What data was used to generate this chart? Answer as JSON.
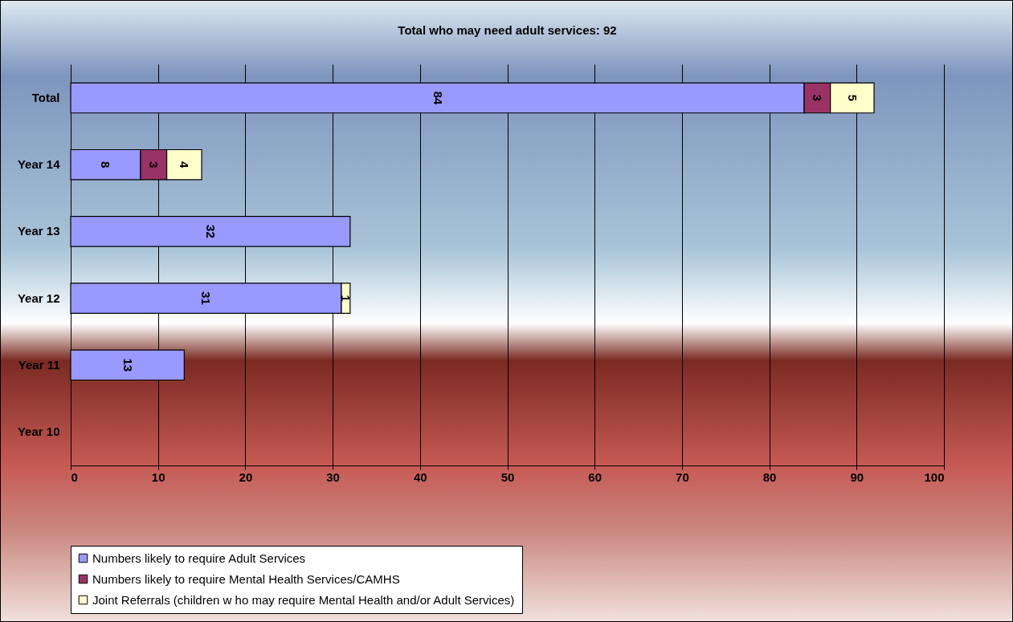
{
  "chart_data": {
    "type": "bar",
    "orientation": "horizontal",
    "stacked": true,
    "title": "Total who may need adult services: 92",
    "categories": [
      "Total",
      "Year 14",
      "Year 13",
      "Year 12",
      "Year 11",
      "Year 10"
    ],
    "series": [
      {
        "name": "Numbers likely to require Adult Services",
        "color": "#9999ff",
        "values": [
          84,
          8,
          32,
          31,
          13,
          null
        ]
      },
      {
        "name": "Numbers likely to require Mental Health Services/CAMHS",
        "color": "#993366",
        "values": [
          3,
          3,
          null,
          null,
          null,
          null
        ]
      },
      {
        "name": "Joint Referrals (children w ho may require Mental Health and/or Adult Services)",
        "color": "#ffffcc",
        "values": [
          5,
          4,
          null,
          1,
          null,
          null
        ]
      }
    ],
    "xlim": [
      0,
      100
    ],
    "xticks": [
      0,
      10,
      20,
      30,
      40,
      50,
      60,
      70,
      80,
      90,
      100
    ],
    "grid": "x",
    "legend": "bottom",
    "data_labels": true
  }
}
